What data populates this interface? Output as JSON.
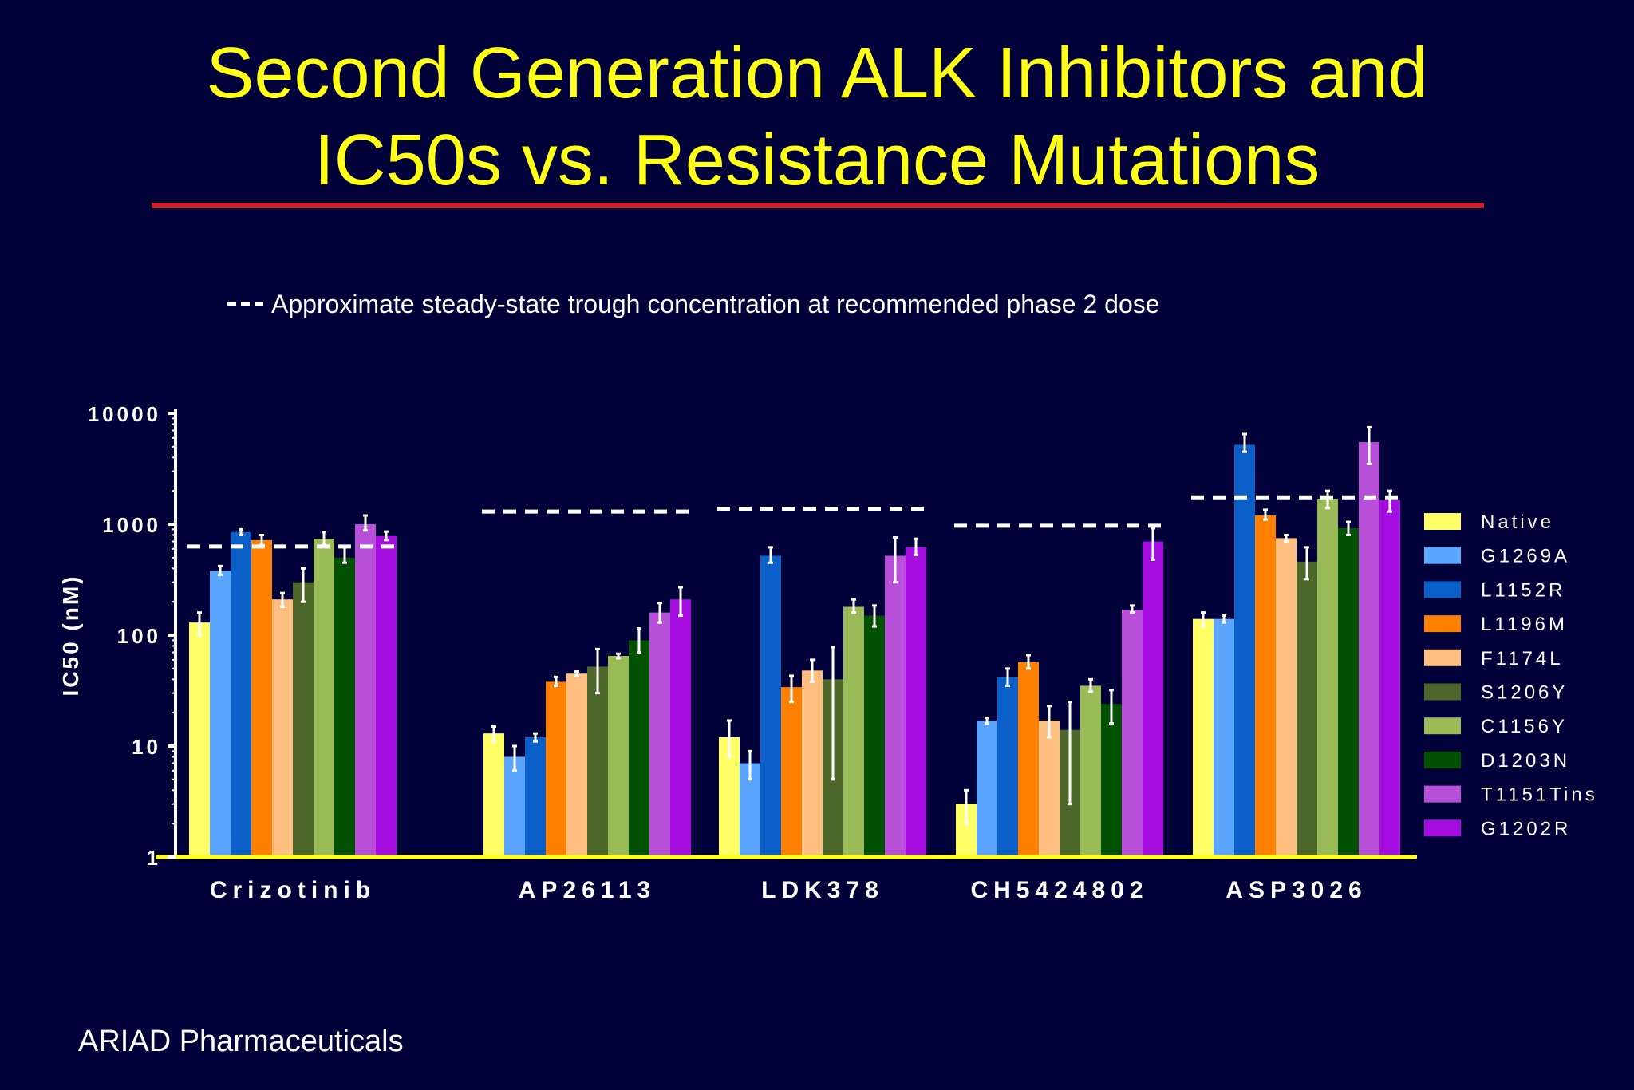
{
  "slide": {
    "title_line1": "Second Generation ALK Inhibitors and",
    "title_line2": "IC50s vs. Resistance Mutations",
    "footer": "ARIAD Pharmaceuticals",
    "title_color": "#ffff1a",
    "rule_color": "#c8202a",
    "background": "#01013a"
  },
  "chart_data": {
    "type": "bar",
    "title": "",
    "xlabel": "",
    "ylabel": "IC50 (nM)",
    "yscale": "log",
    "ylim": [
      1,
      10000
    ],
    "yticks": [
      1,
      10,
      100,
      1000,
      10000
    ],
    "ytick_labels": [
      "1",
      "10",
      "100",
      "1000",
      "10000"
    ],
    "legend_position": "right",
    "note": "Approximate steady-state trough concentration at recommended phase 2 dose",
    "categories": [
      "Crizotinib",
      "AP26113",
      "LDK378",
      "CH5424802",
      "ASP3026"
    ],
    "trough_concentration": [
      630,
      1300,
      1380,
      970,
      1750
    ],
    "series": [
      {
        "name": "Native",
        "color": "#ffff66",
        "values": [
          130,
          13,
          12,
          3,
          140
        ],
        "error": [
          [
            100,
            160
          ],
          [
            11,
            15
          ],
          [
            8,
            17
          ],
          [
            2,
            4
          ],
          [
            120,
            160
          ]
        ]
      },
      {
        "name": "G1269A",
        "color": "#5aa5ff",
        "values": [
          380,
          8,
          7,
          17,
          140
        ],
        "error": [
          [
            350,
            420
          ],
          [
            6,
            10
          ],
          [
            5,
            9
          ],
          [
            16,
            18
          ],
          [
            130,
            150
          ]
        ]
      },
      {
        "name": "L1152R",
        "color": "#0a5fc8",
        "values": [
          850,
          12,
          520,
          42,
          5200
        ],
        "error": [
          [
            800,
            900
          ],
          [
            11,
            13
          ],
          [
            450,
            620
          ],
          [
            35,
            50
          ],
          [
            4500,
            6500
          ]
        ]
      },
      {
        "name": "L1196M",
        "color": "#ff7f00",
        "values": [
          720,
          38,
          34,
          57,
          1200
        ],
        "error": [
          [
            650,
            800
          ],
          [
            35,
            42
          ],
          [
            25,
            43
          ],
          [
            50,
            66
          ],
          [
            1100,
            1350
          ]
        ]
      },
      {
        "name": "F1174L",
        "color": "#ffbf80",
        "values": [
          210,
          45,
          48,
          17,
          750
        ],
        "error": [
          [
            180,
            240
          ],
          [
            43,
            47
          ],
          [
            38,
            60
          ],
          [
            12,
            23
          ],
          [
            700,
            800
          ]
        ]
      },
      {
        "name": "S1206Y",
        "color": "#4d6629",
        "values": [
          300,
          52,
          40,
          14,
          460
        ],
        "error": [
          [
            200,
            400
          ],
          [
            30,
            75
          ],
          [
            5,
            78
          ],
          [
            3,
            25
          ],
          [
            320,
            620
          ]
        ]
      },
      {
        "name": "C1156Y",
        "color": "#9bbb59",
        "values": [
          740,
          65,
          180,
          35,
          1700
        ],
        "error": [
          [
            650,
            850
          ],
          [
            62,
            68
          ],
          [
            160,
            210
          ],
          [
            31,
            40
          ],
          [
            1400,
            2000
          ]
        ]
      },
      {
        "name": "D1203N",
        "color": "#005200",
        "values": [
          500,
          90,
          150,
          24,
          920
        ],
        "error": [
          [
            450,
            620
          ],
          [
            70,
            115
          ],
          [
            120,
            185
          ],
          [
            16,
            32
          ],
          [
            800,
            1050
          ]
        ]
      },
      {
        "name": "T1151Tins",
        "color": "#b84fd8",
        "values": [
          1000,
          160,
          520,
          170,
          5500
        ],
        "error": [
          [
            880,
            1200
          ],
          [
            130,
            195
          ],
          [
            300,
            760
          ],
          [
            160,
            185
          ],
          [
            3500,
            7500
          ]
        ]
      },
      {
        "name": "G1202R",
        "color": "#a60de0",
        "values": [
          780,
          210,
          620,
          700,
          1650
        ],
        "error": [
          [
            720,
            860
          ],
          [
            150,
            270
          ],
          [
            530,
            740
          ],
          [
            480,
            920
          ],
          [
            1300,
            2000
          ]
        ]
      }
    ]
  }
}
